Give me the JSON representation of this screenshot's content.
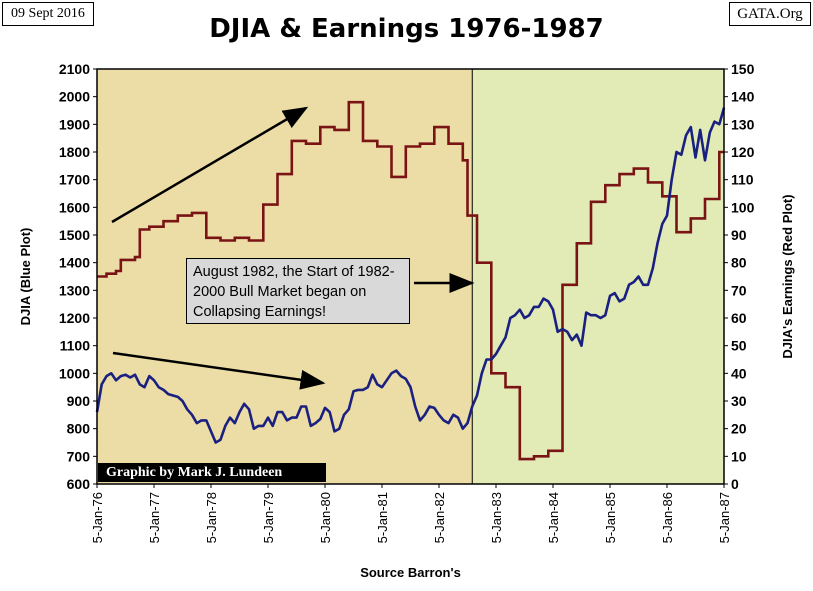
{
  "header": {
    "date_label": "09 Sept 2016",
    "site_label": "GATA.Org"
  },
  "annotations": {
    "callout_text": "August 1982, the Start of 1982-2000 Bull Market began on Collapsing Earnings!",
    "credit": "Graphic by Mark J. Lundeen"
  },
  "colors": {
    "djia_line": "#1a2080",
    "earnings_line": "#7a1414",
    "pre_bg": "#ecdca6",
    "post_bg": "#e2eab6",
    "frame": "#000000"
  },
  "chart_data": {
    "type": "line",
    "title": "DJIA & Earnings 1976-1987",
    "xlabel": "Source Barron's",
    "ylabel": "DJIA  (Blue Plot)",
    "y2label": "DJIA's Earnings  (Red Plot)",
    "x_ticks": [
      "5-Jan-76",
      "5-Jan-77",
      "5-Jan-78",
      "5-Jan-79",
      "5-Jan-80",
      "5-Jan-81",
      "5-Jan-82",
      "5-Jan-83",
      "5-Jan-84",
      "5-Jan-85",
      "5-Jan-86",
      "5-Jan-87"
    ],
    "ylim": [
      600,
      2100
    ],
    "y_ticks": [
      600,
      700,
      800,
      900,
      1000,
      1100,
      1200,
      1300,
      1400,
      1500,
      1600,
      1700,
      1800,
      1900,
      2000,
      2100
    ],
    "y2lim": [
      0,
      150
    ],
    "y2_ticks": [
      0,
      10,
      20,
      30,
      40,
      50,
      60,
      70,
      80,
      90,
      100,
      110,
      120,
      130,
      140,
      150
    ],
    "grid": false,
    "divider_date": "1982-08",
    "series": [
      {
        "name": "DJIA",
        "axis": "left",
        "points": [
          [
            "1976-01",
            860
          ],
          [
            "1976-02",
            960
          ],
          [
            "1976-03",
            990
          ],
          [
            "1976-04",
            1000
          ],
          [
            "1976-05",
            975
          ],
          [
            "1976-06",
            990
          ],
          [
            "1976-07",
            995
          ],
          [
            "1976-08",
            985
          ],
          [
            "1976-09",
            995
          ],
          [
            "1976-10",
            960
          ],
          [
            "1976-11",
            950
          ],
          [
            "1976-12",
            990
          ],
          [
            "1977-01",
            975
          ],
          [
            "1977-02",
            950
          ],
          [
            "1977-03",
            940
          ],
          [
            "1977-04",
            925
          ],
          [
            "1977-05",
            920
          ],
          [
            "1977-06",
            915
          ],
          [
            "1977-07",
            900
          ],
          [
            "1977-08",
            870
          ],
          [
            "1977-09",
            850
          ],
          [
            "1977-10",
            820
          ],
          [
            "1977-11",
            830
          ],
          [
            "1977-12",
            830
          ],
          [
            "1978-01",
            790
          ],
          [
            "1978-02",
            750
          ],
          [
            "1978-03",
            760
          ],
          [
            "1978-04",
            810
          ],
          [
            "1978-05",
            840
          ],
          [
            "1978-06",
            820
          ],
          [
            "1978-07",
            860
          ],
          [
            "1978-08",
            890
          ],
          [
            "1978-09",
            870
          ],
          [
            "1978-10",
            800
          ],
          [
            "1978-11",
            810
          ],
          [
            "1978-12",
            810
          ],
          [
            "1979-01",
            840
          ],
          [
            "1979-02",
            810
          ],
          [
            "1979-03",
            860
          ],
          [
            "1979-04",
            860
          ],
          [
            "1979-05",
            830
          ],
          [
            "1979-06",
            840
          ],
          [
            "1979-07",
            840
          ],
          [
            "1979-08",
            880
          ],
          [
            "1979-09",
            880
          ],
          [
            "1979-10",
            810
          ],
          [
            "1979-11",
            820
          ],
          [
            "1979-12",
            835
          ],
          [
            "1980-01",
            875
          ],
          [
            "1980-02",
            860
          ],
          [
            "1980-03",
            790
          ],
          [
            "1980-04",
            800
          ],
          [
            "1980-05",
            850
          ],
          [
            "1980-06",
            870
          ],
          [
            "1980-07",
            935
          ],
          [
            "1980-08",
            940
          ],
          [
            "1980-09",
            940
          ],
          [
            "1980-10",
            950
          ],
          [
            "1980-11",
            995
          ],
          [
            "1980-12",
            960
          ],
          [
            "1981-01",
            950
          ],
          [
            "1981-02",
            975
          ],
          [
            "1981-03",
            1000
          ],
          [
            "1981-04",
            1010
          ],
          [
            "1981-05",
            990
          ],
          [
            "1981-06",
            980
          ],
          [
            "1981-07",
            950
          ],
          [
            "1981-08",
            880
          ],
          [
            "1981-09",
            830
          ],
          [
            "1981-10",
            850
          ],
          [
            "1981-11",
            880
          ],
          [
            "1981-12",
            875
          ],
          [
            "1982-01",
            850
          ],
          [
            "1982-02",
            830
          ],
          [
            "1982-03",
            820
          ],
          [
            "1982-04",
            850
          ],
          [
            "1982-05",
            840
          ],
          [
            "1982-06",
            800
          ],
          [
            "1982-07",
            820
          ],
          [
            "1982-08",
            880
          ],
          [
            "1982-09",
            920
          ],
          [
            "1982-10",
            1000
          ],
          [
            "1982-11",
            1050
          ],
          [
            "1982-12",
            1050
          ],
          [
            "1983-01",
            1070
          ],
          [
            "1983-02",
            1100
          ],
          [
            "1983-03",
            1130
          ],
          [
            "1983-04",
            1200
          ],
          [
            "1983-05",
            1210
          ],
          [
            "1983-06",
            1230
          ],
          [
            "1983-07",
            1200
          ],
          [
            "1983-08",
            1210
          ],
          [
            "1983-09",
            1240
          ],
          [
            "1983-10",
            1240
          ],
          [
            "1983-11",
            1270
          ],
          [
            "1983-12",
            1260
          ],
          [
            "1984-01",
            1230
          ],
          [
            "1984-02",
            1150
          ],
          [
            "1984-03",
            1160
          ],
          [
            "1984-04",
            1150
          ],
          [
            "1984-05",
            1120
          ],
          [
            "1984-06",
            1140
          ],
          [
            "1984-07",
            1100
          ],
          [
            "1984-08",
            1220
          ],
          [
            "1984-09",
            1210
          ],
          [
            "1984-10",
            1210
          ],
          [
            "1984-11",
            1200
          ],
          [
            "1984-12",
            1210
          ],
          [
            "1985-01",
            1280
          ],
          [
            "1985-02",
            1290
          ],
          [
            "1985-03",
            1260
          ],
          [
            "1985-04",
            1270
          ],
          [
            "1985-05",
            1320
          ],
          [
            "1985-06",
            1330
          ],
          [
            "1985-07",
            1350
          ],
          [
            "1985-08",
            1320
          ],
          [
            "1985-09",
            1320
          ],
          [
            "1985-10",
            1380
          ],
          [
            "1985-11",
            1470
          ],
          [
            "1985-12",
            1540
          ],
          [
            "1986-01",
            1570
          ],
          [
            "1986-02",
            1700
          ],
          [
            "1986-03",
            1800
          ],
          [
            "1986-04",
            1790
          ],
          [
            "1986-05",
            1860
          ],
          [
            "1986-06",
            1890
          ],
          [
            "1986-07",
            1780
          ],
          [
            "1986-08",
            1880
          ],
          [
            "1986-09",
            1770
          ],
          [
            "1986-10",
            1870
          ],
          [
            "1986-11",
            1910
          ],
          [
            "1986-12",
            1900
          ],
          [
            "1987-01",
            1960
          ]
        ]
      },
      {
        "name": "DJIA Earnings",
        "axis": "right",
        "points": [
          [
            "1976-01",
            75
          ],
          [
            "1976-03",
            76
          ],
          [
            "1976-05",
            77
          ],
          [
            "1976-06",
            81
          ],
          [
            "1976-09",
            82
          ],
          [
            "1976-10",
            92
          ],
          [
            "1976-12",
            93
          ],
          [
            "1977-03",
            95
          ],
          [
            "1977-06",
            97
          ],
          [
            "1977-09",
            98
          ],
          [
            "1977-12",
            89
          ],
          [
            "1978-03",
            88
          ],
          [
            "1978-06",
            89
          ],
          [
            "1978-09",
            88
          ],
          [
            "1978-12",
            101
          ],
          [
            "1979-03",
            112
          ],
          [
            "1979-06",
            124
          ],
          [
            "1979-09",
            123
          ],
          [
            "1979-12",
            129
          ],
          [
            "1980-03",
            128
          ],
          [
            "1980-06",
            138
          ],
          [
            "1980-09",
            124
          ],
          [
            "1980-12",
            122
          ],
          [
            "1981-03",
            111
          ],
          [
            "1981-06",
            122
          ],
          [
            "1981-09",
            123
          ],
          [
            "1981-12",
            129
          ],
          [
            "1982-03",
            123
          ],
          [
            "1982-06",
            117
          ],
          [
            "1982-07",
            97
          ],
          [
            "1982-09",
            80
          ],
          [
            "1982-12",
            40
          ],
          [
            "1983-03",
            35
          ],
          [
            "1983-06",
            9
          ],
          [
            "1983-09",
            10
          ],
          [
            "1983-12",
            12
          ],
          [
            "1984-03",
            72
          ],
          [
            "1984-06",
            87
          ],
          [
            "1984-09",
            102
          ],
          [
            "1984-12",
            108
          ],
          [
            "1985-03",
            112
          ],
          [
            "1985-06",
            114
          ],
          [
            "1985-09",
            109
          ],
          [
            "1985-12",
            104
          ],
          [
            "1986-03",
            91
          ],
          [
            "1986-06",
            96
          ],
          [
            "1986-09",
            103
          ],
          [
            "1986-12",
            120
          ],
          [
            "1987-01",
            120
          ]
        ]
      }
    ]
  }
}
